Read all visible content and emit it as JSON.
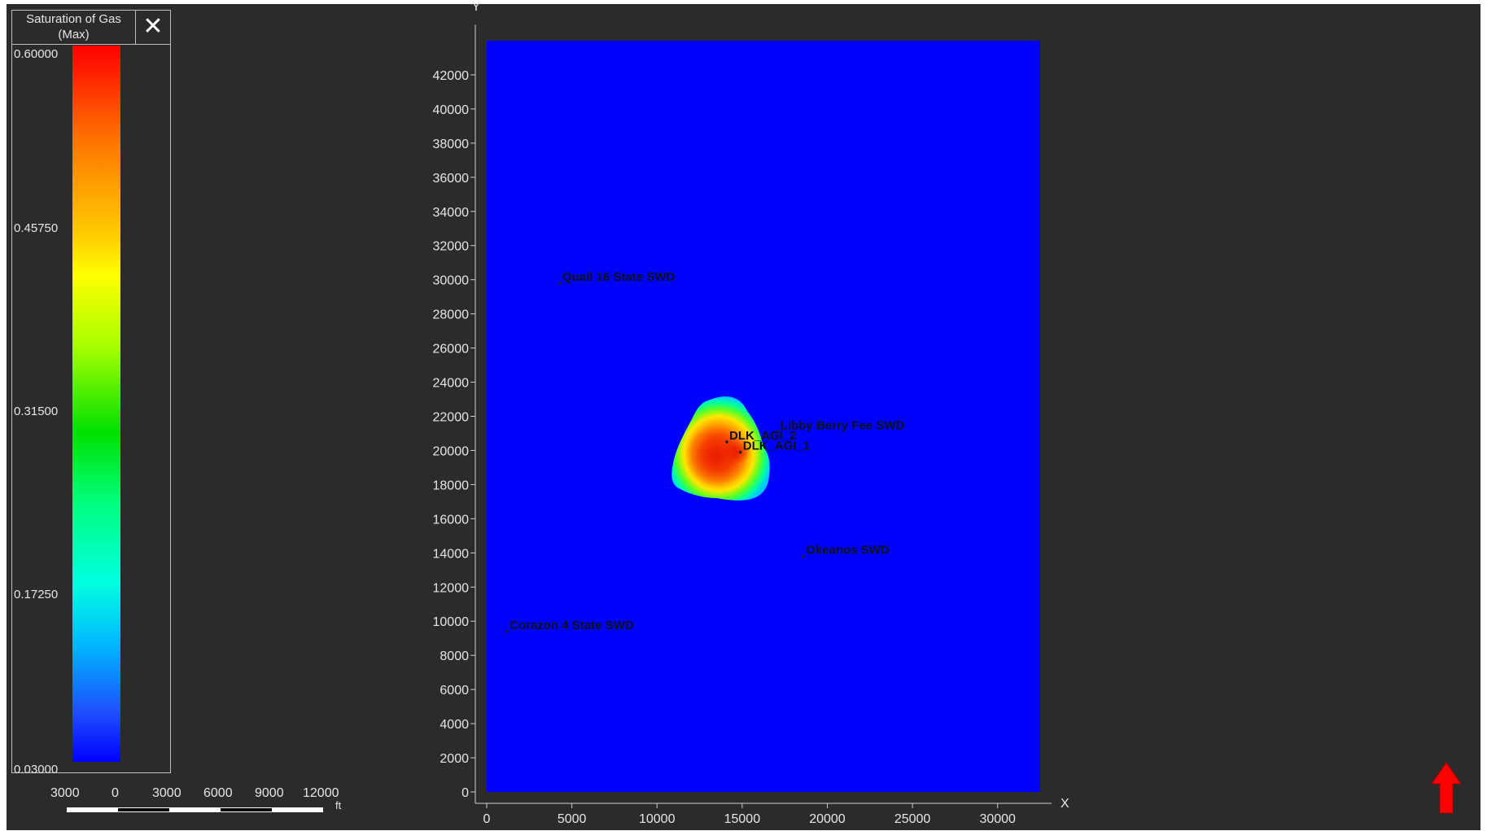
{
  "legend": {
    "title_line1": "Saturation of Gas",
    "title_line2": "(Max)",
    "ticks": [
      "0.60000",
      "0.45750",
      "0.31500",
      "0.17250",
      "0.03000"
    ]
  },
  "scalebar": {
    "labels": [
      "3000",
      "0",
      "3000",
      "6000",
      "9000",
      "12000"
    ],
    "unit": "ft"
  },
  "plot": {
    "y_axis_name": "Y",
    "x_axis_name": "X",
    "x_ticks": [
      0,
      5000,
      10000,
      15000,
      20000,
      25000,
      30000
    ],
    "y_ticks": [
      0,
      2000,
      4000,
      6000,
      8000,
      10000,
      12000,
      14000,
      16000,
      18000,
      20000,
      22000,
      24000,
      26000,
      28000,
      30000,
      32000,
      34000,
      36000,
      38000,
      40000,
      42000
    ],
    "xlim": [
      0,
      32500
    ],
    "ylim": [
      0,
      44000
    ],
    "field_color": "#0000ff",
    "wells": [
      {
        "name": "Quail 16 State SWD",
        "x": 4300,
        "y": 29800
      },
      {
        "name": "Libby Berry Fee SWD",
        "x": 17100,
        "y": 21100
      },
      {
        "name": "DLK_AGI_2",
        "x": 14100,
        "y": 20500
      },
      {
        "name": "DLK_AGI_1",
        "x": 14900,
        "y": 19900
      },
      {
        "name": "Okeanos SWD",
        "x": 18600,
        "y": 13800
      },
      {
        "name": "Corazon 4 State SWD",
        "x": 1200,
        "y": 9400
      }
    ]
  }
}
